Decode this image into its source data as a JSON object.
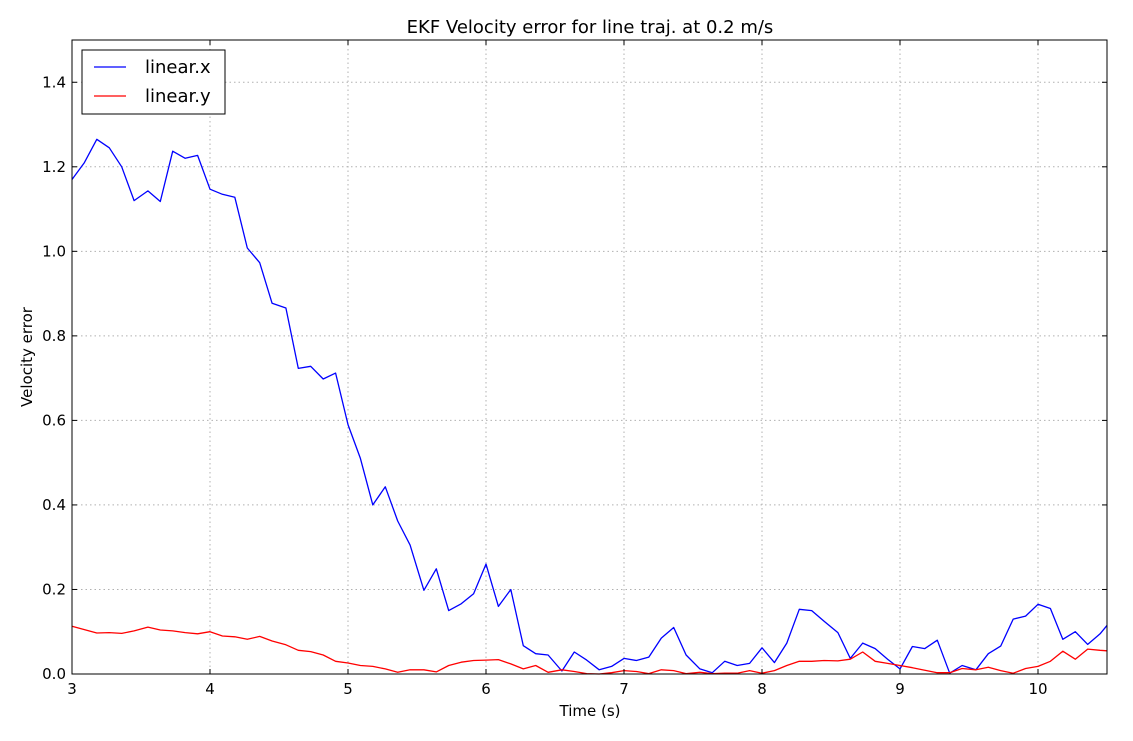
{
  "chart_data": {
    "type": "line",
    "title": "EKF Velocity error for line traj. at 0.2 m/s",
    "xlabel": "Time (s)",
    "ylabel": "Velocity error",
    "xlim": [
      3,
      10.5
    ],
    "ylim": [
      0,
      1.5
    ],
    "xticks": [
      3,
      4,
      5,
      6,
      7,
      8,
      9,
      10
    ],
    "xtick_labels": [
      "3",
      "4",
      "5",
      "6",
      "7",
      "8",
      "9",
      "10"
    ],
    "yticks": [
      0.0,
      0.2,
      0.4,
      0.6,
      0.8,
      1.0,
      1.2,
      1.4
    ],
    "ytick_labels": [
      "0.0",
      "0.2",
      "0.4",
      "0.6",
      "0.8",
      "1.0",
      "1.2",
      "1.4"
    ],
    "grid": true,
    "legend_position": "top-left",
    "series": [
      {
        "name": "linear.x",
        "color": "#0000ff",
        "points": [
          [
            3.0,
            1.17
          ],
          [
            3.09,
            1.21
          ],
          [
            3.18,
            1.265
          ],
          [
            3.27,
            1.245
          ],
          [
            3.36,
            1.2
          ],
          [
            3.45,
            1.12
          ],
          [
            3.55,
            1.143
          ],
          [
            3.64,
            1.118
          ],
          [
            3.73,
            1.237
          ],
          [
            3.82,
            1.22
          ],
          [
            3.91,
            1.227
          ],
          [
            4.0,
            1.147
          ],
          [
            4.09,
            1.135
          ],
          [
            4.18,
            1.128
          ],
          [
            4.27,
            1.008
          ],
          [
            4.36,
            0.973
          ],
          [
            4.45,
            0.877
          ],
          [
            4.55,
            0.866
          ],
          [
            4.64,
            0.723
          ],
          [
            4.73,
            0.728
          ],
          [
            4.82,
            0.698
          ],
          [
            4.91,
            0.712
          ],
          [
            5.0,
            0.59
          ],
          [
            5.09,
            0.51
          ],
          [
            5.18,
            0.4
          ],
          [
            5.27,
            0.443
          ],
          [
            5.36,
            0.362
          ],
          [
            5.45,
            0.305
          ],
          [
            5.55,
            0.198
          ],
          [
            5.64,
            0.249
          ],
          [
            5.73,
            0.15
          ],
          [
            5.82,
            0.166
          ],
          [
            5.91,
            0.19
          ],
          [
            6.0,
            0.26
          ],
          [
            6.09,
            0.16
          ],
          [
            6.18,
            0.2
          ],
          [
            6.27,
            0.067
          ],
          [
            6.36,
            0.048
          ],
          [
            6.45,
            0.045
          ],
          [
            6.55,
            0.007
          ],
          [
            6.64,
            0.052
          ],
          [
            6.73,
            0.033
          ],
          [
            6.82,
            0.01
          ],
          [
            6.91,
            0.018
          ],
          [
            7.0,
            0.037
          ],
          [
            7.09,
            0.032
          ],
          [
            7.18,
            0.04
          ],
          [
            7.27,
            0.085
          ],
          [
            7.36,
            0.11
          ],
          [
            7.45,
            0.045
          ],
          [
            7.55,
            0.012
          ],
          [
            7.64,
            0.003
          ],
          [
            7.73,
            0.03
          ],
          [
            7.82,
            0.02
          ],
          [
            7.91,
            0.025
          ],
          [
            8.0,
            0.062
          ],
          [
            8.09,
            0.027
          ],
          [
            8.18,
            0.073
          ],
          [
            8.27,
            0.153
          ],
          [
            8.36,
            0.15
          ],
          [
            8.45,
            0.125
          ],
          [
            8.55,
            0.098
          ],
          [
            8.64,
            0.037
          ],
          [
            8.73,
            0.073
          ],
          [
            8.82,
            0.06
          ],
          [
            8.91,
            0.035
          ],
          [
            9.0,
            0.012
          ],
          [
            9.09,
            0.065
          ],
          [
            9.18,
            0.06
          ],
          [
            9.27,
            0.08
          ],
          [
            9.36,
            0.002
          ],
          [
            9.45,
            0.02
          ],
          [
            9.55,
            0.01
          ],
          [
            9.64,
            0.048
          ],
          [
            9.73,
            0.066
          ],
          [
            9.82,
            0.13
          ],
          [
            9.91,
            0.137
          ],
          [
            10.0,
            0.165
          ],
          [
            10.09,
            0.155
          ],
          [
            10.18,
            0.082
          ],
          [
            10.27,
            0.1
          ],
          [
            10.36,
            0.07
          ],
          [
            10.45,
            0.095
          ],
          [
            10.5,
            0.115
          ]
        ]
      },
      {
        "name": "linear.y",
        "color": "#ff0000",
        "points": [
          [
            3.0,
            0.113
          ],
          [
            3.09,
            0.105
          ],
          [
            3.18,
            0.097
          ],
          [
            3.27,
            0.098
          ],
          [
            3.36,
            0.096
          ],
          [
            3.45,
            0.102
          ],
          [
            3.55,
            0.111
          ],
          [
            3.64,
            0.104
          ],
          [
            3.73,
            0.102
          ],
          [
            3.82,
            0.098
          ],
          [
            3.91,
            0.095
          ],
          [
            4.0,
            0.1
          ],
          [
            4.09,
            0.09
          ],
          [
            4.18,
            0.088
          ],
          [
            4.27,
            0.082
          ],
          [
            4.36,
            0.089
          ],
          [
            4.45,
            0.078
          ],
          [
            4.55,
            0.069
          ],
          [
            4.64,
            0.056
          ],
          [
            4.73,
            0.053
          ],
          [
            4.82,
            0.045
          ],
          [
            4.91,
            0.03
          ],
          [
            5.0,
            0.026
          ],
          [
            5.09,
            0.02
          ],
          [
            5.18,
            0.018
          ],
          [
            5.27,
            0.012
          ],
          [
            5.36,
            0.004
          ],
          [
            5.45,
            0.01
          ],
          [
            5.55,
            0.01
          ],
          [
            5.64,
            0.005
          ],
          [
            5.73,
            0.02
          ],
          [
            5.82,
            0.028
          ],
          [
            5.91,
            0.032
          ],
          [
            6.0,
            0.033
          ],
          [
            6.09,
            0.034
          ],
          [
            6.18,
            0.024
          ],
          [
            6.27,
            0.012
          ],
          [
            6.36,
            0.02
          ],
          [
            6.45,
            0.004
          ],
          [
            6.55,
            0.01
          ],
          [
            6.64,
            0.006
          ],
          [
            6.73,
            0.001
          ],
          [
            6.82,
            0.0
          ],
          [
            6.91,
            0.003
          ],
          [
            7.0,
            0.008
          ],
          [
            7.09,
            0.006
          ],
          [
            7.18,
            0.001
          ],
          [
            7.27,
            0.01
          ],
          [
            7.36,
            0.008
          ],
          [
            7.45,
            0.001
          ],
          [
            7.55,
            0.004
          ],
          [
            7.64,
            0.001
          ],
          [
            7.73,
            0.002
          ],
          [
            7.82,
            0.002
          ],
          [
            7.91,
            0.008
          ],
          [
            8.0,
            0.002
          ],
          [
            8.09,
            0.008
          ],
          [
            8.18,
            0.02
          ],
          [
            8.27,
            0.03
          ],
          [
            8.36,
            0.03
          ],
          [
            8.45,
            0.032
          ],
          [
            8.55,
            0.031
          ],
          [
            8.64,
            0.035
          ],
          [
            8.73,
            0.052
          ],
          [
            8.82,
            0.03
          ],
          [
            8.91,
            0.025
          ],
          [
            9.0,
            0.02
          ],
          [
            9.09,
            0.015
          ],
          [
            9.18,
            0.009
          ],
          [
            9.27,
            0.003
          ],
          [
            9.36,
            0.003
          ],
          [
            9.45,
            0.013
          ],
          [
            9.55,
            0.01
          ],
          [
            9.64,
            0.016
          ],
          [
            9.73,
            0.008
          ],
          [
            9.82,
            0.002
          ],
          [
            9.91,
            0.013
          ],
          [
            10.0,
            0.018
          ],
          [
            10.09,
            0.03
          ],
          [
            10.18,
            0.054
          ],
          [
            10.27,
            0.035
          ],
          [
            10.36,
            0.059
          ],
          [
            10.45,
            0.056
          ],
          [
            10.5,
            0.055
          ]
        ]
      }
    ]
  }
}
